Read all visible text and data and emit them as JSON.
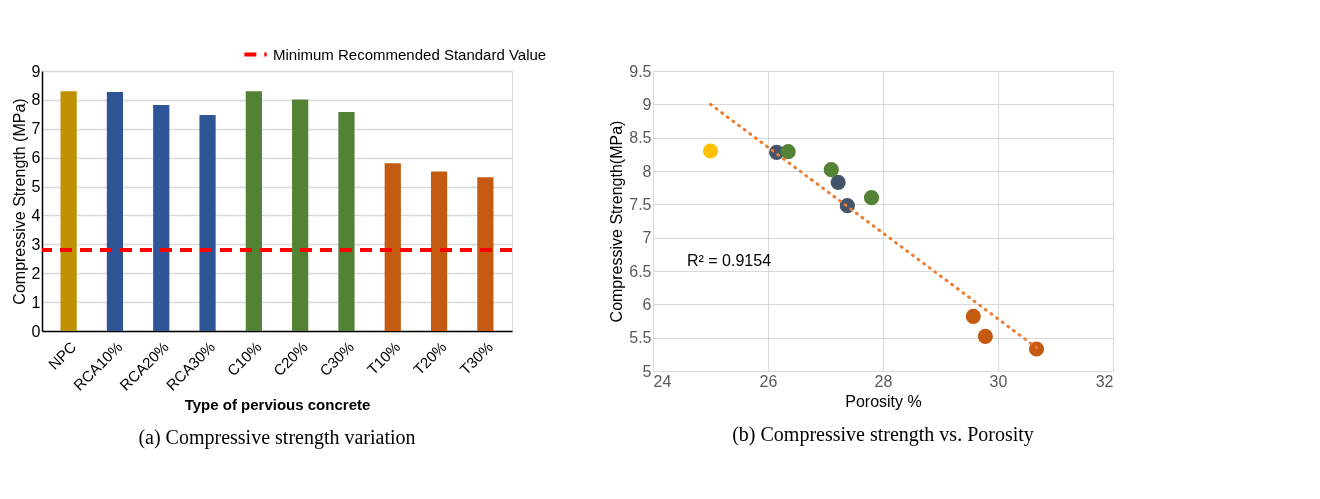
{
  "chart_data": [
    {
      "type": "bar",
      "title": "(a) Compressive strength variation",
      "xlabel": "Type of pervious concrete",
      "ylabel": "Compressive Strength (MPa)",
      "categories": [
        "NPC",
        "RCA10%",
        "RCA20%",
        "RCA30%",
        "C10%",
        "C20%",
        "C30%",
        "T10%",
        "T20%",
        "T30%"
      ],
      "values": [
        8.3,
        8.27,
        7.82,
        7.48,
        8.3,
        8.01,
        7.58,
        5.81,
        5.52,
        5.32
      ],
      "colors": [
        "#bf9000",
        "#2f5597",
        "#2f5597",
        "#2f5597",
        "#548235",
        "#548235",
        "#548235",
        "#c55a11",
        "#c55a11",
        "#c55a11"
      ],
      "ylim": [
        0,
        9
      ],
      "yticks": [
        0,
        1,
        2,
        3,
        4,
        5,
        6,
        7,
        8,
        9
      ],
      "grid": "y",
      "legend": "top right",
      "ref_lines": [
        {
          "axis": "y",
          "value": 2.8,
          "label": "Minimum Recommended Standard Value",
          "color": "#ff0000",
          "line_style": "dashed"
        }
      ]
    },
    {
      "type": "scatter",
      "title": "(b) Compressive strength vs. Porosity",
      "xlabel": "Porosity %",
      "ylabel": "Compressive Strength(MPa)",
      "xlim": [
        24,
        32
      ],
      "xticks": [
        24,
        26,
        28,
        30,
        32
      ],
      "ylim": [
        5,
        9.5
      ],
      "yticks": [
        5,
        5.5,
        6,
        6.5,
        7,
        7.5,
        8,
        8.5,
        9,
        9.5
      ],
      "grid": true,
      "marker": "circle",
      "annotations": [
        "R² = 0.9154"
      ],
      "series": [
        {
          "color": "#ffc000",
          "x": [
            25.0
          ],
          "values": [
            8.3
          ]
        },
        {
          "color": "#44546a",
          "x": [
            26.15,
            27.22,
            27.38
          ],
          "values": [
            8.28,
            7.83,
            7.48
          ]
        },
        {
          "color": "#548235",
          "x": [
            26.35,
            27.1,
            27.8
          ],
          "values": [
            8.29,
            8.02,
            7.6
          ]
        },
        {
          "color": "#c55a11",
          "x": [
            29.57,
            29.78,
            30.67
          ],
          "values": [
            5.82,
            5.52,
            5.33
          ]
        },
        {
          "type": "line",
          "color": "#ed7d31",
          "line_style": "dotted",
          "marker": "none",
          "x": [
            25.0,
            30.67
          ],
          "values": [
            9.0,
            5.35
          ]
        }
      ]
    }
  ]
}
